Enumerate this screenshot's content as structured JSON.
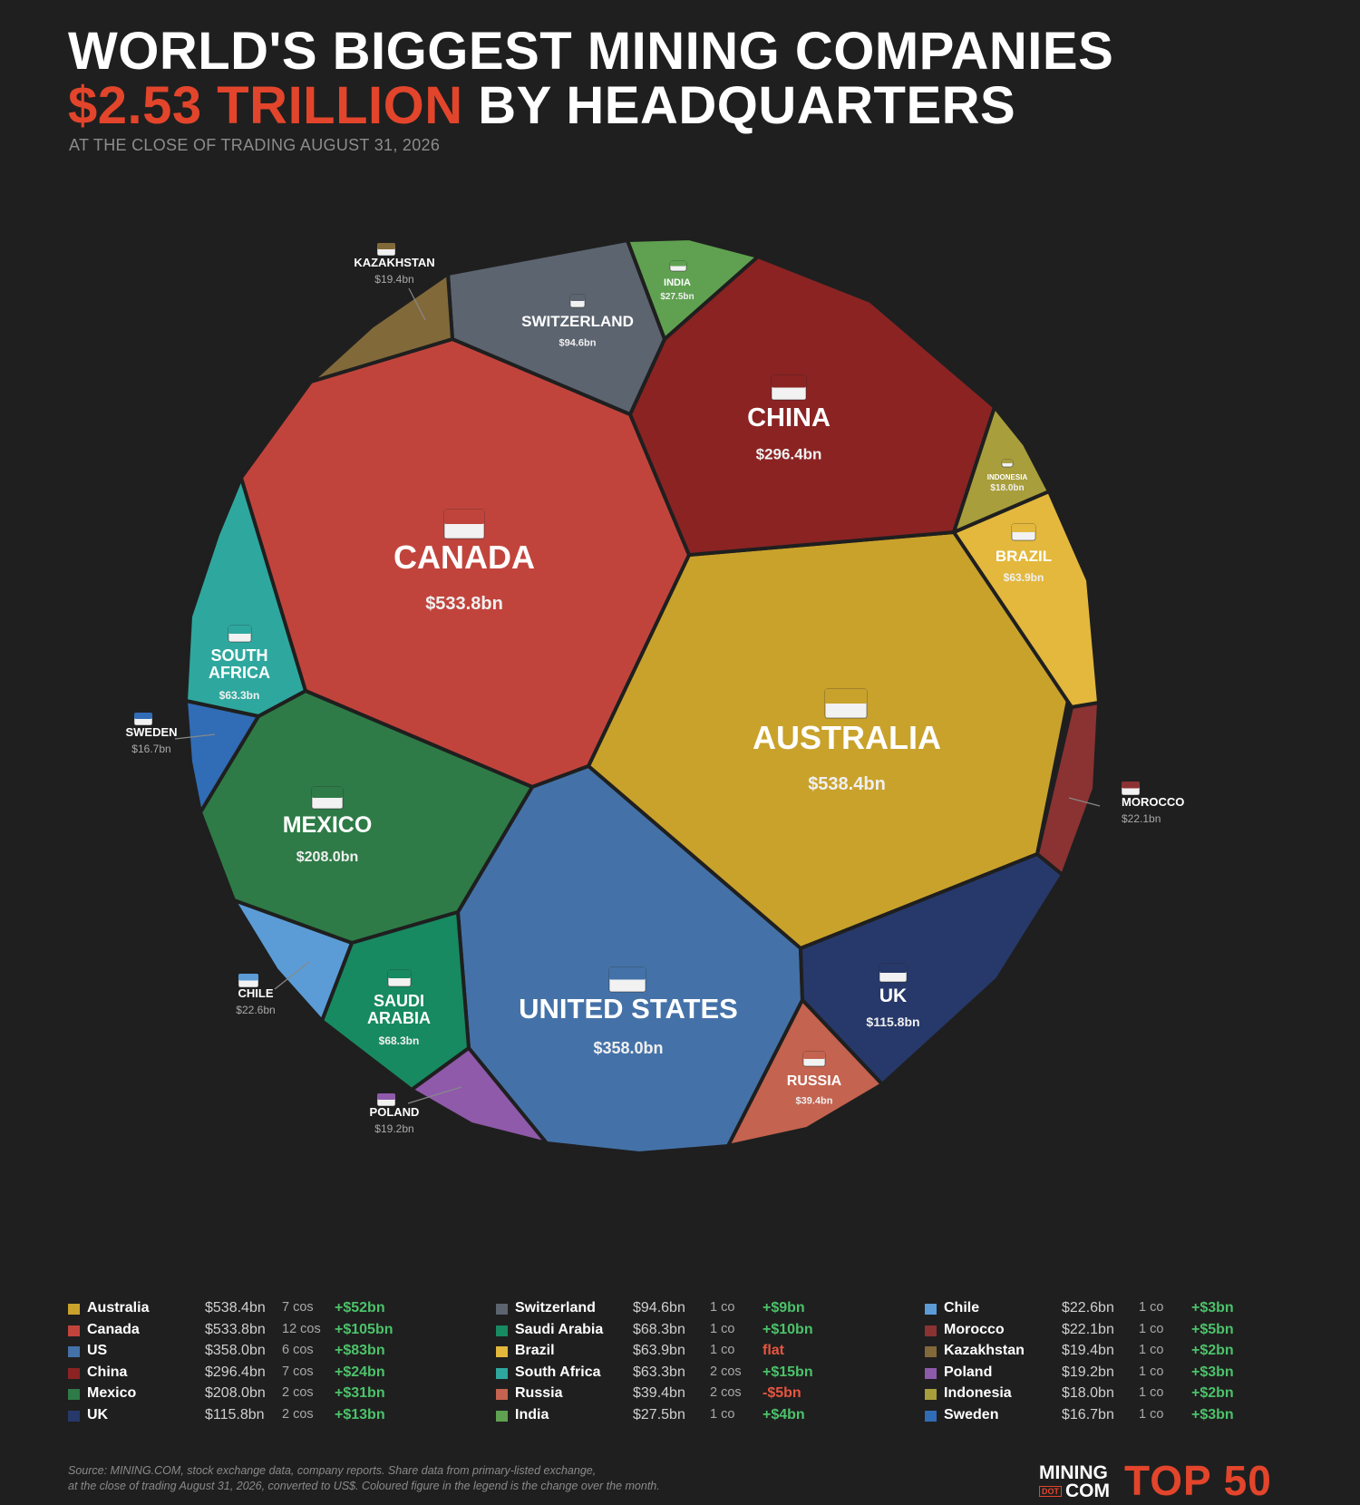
{
  "header": {
    "title_line1": "WORLD'S BIGGEST MINING COMPANIES",
    "title_accent": "$2.53 TRILLION",
    "title_rest": " BY HEADQUARTERS",
    "subtitle": "AT THE CLOSE OF TRADING AUGUST 31, 2026"
  },
  "chart_data": {
    "type": "voronoi-treemap",
    "total": "$2.53 TRILLION",
    "regions": [
      {
        "country": "AUSTRALIA",
        "value": "$538.4bn",
        "value_bn": 538.4,
        "color": "#c9a22c"
      },
      {
        "country": "CANADA",
        "value": "$533.8bn",
        "value_bn": 533.8,
        "color": "#c1443c"
      },
      {
        "country": "UNITED STATES",
        "value": "$358.0bn",
        "value_bn": 358.0,
        "color": "#4472a8"
      },
      {
        "country": "CHINA",
        "value": "$296.4bn",
        "value_bn": 296.4,
        "color": "#8b2323"
      },
      {
        "country": "MEXICO",
        "value": "$208.0bn",
        "value_bn": 208.0,
        "color": "#2e7b47"
      },
      {
        "country": "UK",
        "value": "$115.8bn",
        "value_bn": 115.8,
        "color": "#27396a"
      },
      {
        "country": "SWITZERLAND",
        "value": "$94.6bn",
        "value_bn": 94.6,
        "color": "#5c6470"
      },
      {
        "country": "SAUDI ARABIA",
        "value": "$68.3bn",
        "value_bn": 68.3,
        "color": "#178a62"
      },
      {
        "country": "BRAZIL",
        "value": "$63.9bn",
        "value_bn": 63.9,
        "color": "#e3b83c"
      },
      {
        "country": "SOUTH AFRICA",
        "value": "$63.3bn",
        "value_bn": 63.3,
        "color": "#2ea89e"
      },
      {
        "country": "RUSSIA",
        "value": "$39.4bn",
        "value_bn": 39.4,
        "color": "#c4634f"
      },
      {
        "country": "INDIA",
        "value": "$27.5bn",
        "value_bn": 27.5,
        "color": "#5fa150"
      },
      {
        "country": "CHILE",
        "value": "$22.6bn",
        "value_bn": 22.6,
        "color": "#5b9cd6"
      },
      {
        "country": "MOROCCO",
        "value": "$22.1bn",
        "value_bn": 22.1,
        "color": "#8b3232"
      },
      {
        "country": "KAZAKHSTAN",
        "value": "$19.4bn",
        "value_bn": 19.4,
        "color": "#82693a"
      },
      {
        "country": "POLAND",
        "value": "$19.2bn",
        "value_bn": 19.2,
        "color": "#8f5aaa"
      },
      {
        "country": "INDONESIA",
        "value": "$18.0bn",
        "value_bn": 18.0,
        "color": "#a89e3c"
      },
      {
        "country": "SWEDEN",
        "value": "$16.7bn",
        "value_bn": 16.7,
        "color": "#316cb6"
      }
    ]
  },
  "legend": {
    "columns": [
      [
        {
          "name": "Australia",
          "value": "$538.4bn",
          "count": "7 cos",
          "change": "+$52bn",
          "color": "#c9a22c"
        },
        {
          "name": "Canada",
          "value": "$533.8bn",
          "count": "12 cos",
          "change": "+$105bn",
          "color": "#c1443c"
        },
        {
          "name": "US",
          "value": "$358.0bn",
          "count": "6 cos",
          "change": "+$83bn",
          "color": "#4472a8"
        },
        {
          "name": "China",
          "value": "$296.4bn",
          "count": "7 cos",
          "change": "+$24bn",
          "color": "#8b2323"
        },
        {
          "name": "Mexico",
          "value": "$208.0bn",
          "count": "2 cos",
          "change": "+$31bn",
          "color": "#2e7b47"
        },
        {
          "name": "UK",
          "value": "$115.8bn",
          "count": "2 cos",
          "change": "+$13bn",
          "color": "#27396a"
        }
      ],
      [
        {
          "name": "Switzerland",
          "value": "$94.6bn",
          "count": "1 co",
          "change": "+$9bn",
          "color": "#5c6470"
        },
        {
          "name": "Saudi Arabia",
          "value": "$68.3bn",
          "count": "1 co",
          "change": "+$10bn",
          "color": "#178a62"
        },
        {
          "name": "Brazil",
          "value": "$63.9bn",
          "count": "1 co",
          "change": "flat",
          "color": "#e3b83c",
          "neg": true
        },
        {
          "name": "South Africa",
          "value": "$63.3bn",
          "count": "2 cos",
          "change": "+$15bn",
          "color": "#2ea89e"
        },
        {
          "name": "Russia",
          "value": "$39.4bn",
          "count": "2 cos",
          "change": "-$5bn",
          "color": "#c4634f",
          "neg": true
        },
        {
          "name": "India",
          "value": "$27.5bn",
          "count": "1 co",
          "change": "+$4bn",
          "color": "#5fa150"
        }
      ],
      [
        {
          "name": "Chile",
          "value": "$22.6bn",
          "count": "1 co",
          "change": "+$3bn",
          "color": "#5b9cd6"
        },
        {
          "name": "Morocco",
          "value": "$22.1bn",
          "count": "1 co",
          "change": "+$5bn",
          "color": "#8b3232"
        },
        {
          "name": "Kazakhstan",
          "value": "$19.4bn",
          "count": "1 co",
          "change": "+$2bn",
          "color": "#82693a"
        },
        {
          "name": "Poland",
          "value": "$19.2bn",
          "count": "1 co",
          "change": "+$3bn",
          "color": "#8f5aaa"
        },
        {
          "name": "Indonesia",
          "value": "$18.0bn",
          "count": "1 co",
          "change": "+$2bn",
          "color": "#a89e3c"
        },
        {
          "name": "Sweden",
          "value": "$16.7bn",
          "count": "1 co",
          "change": "+$3bn",
          "color": "#316cb6"
        }
      ]
    ]
  },
  "footer": {
    "source_line1": "Source: MINING.COM, stock exchange data, company reports. Share data from primary-listed exchange,",
    "source_line2": "at the close of trading August 31, 2026, converted to US$. Coloured figure in the legend is the change over the month.",
    "brand_top": "MINING",
    "brand_dot": "DOT",
    "brand_bottom": "COM",
    "top50": "TOP 50"
  }
}
